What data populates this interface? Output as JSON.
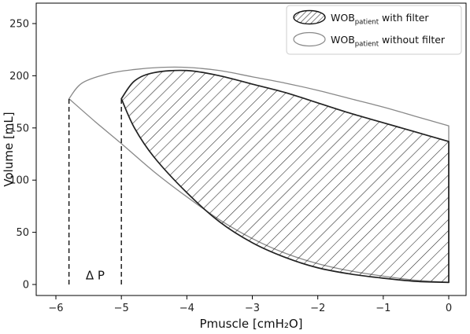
{
  "chart_data": {
    "type": "area",
    "xlabel": "Pmuscle [cmH₂O]",
    "ylabel": "Volume [mL]",
    "xlim": [
      -6.2,
      0.2
    ],
    "ylim": [
      -10,
      270
    ],
    "xticks": [
      -6,
      -5,
      -4,
      -3,
      -2,
      -1,
      0
    ],
    "xtick_labels": [
      "−6",
      "−5",
      "−4",
      "−3",
      "−2",
      "−1",
      "0"
    ],
    "yticks": [
      0,
      50,
      100,
      150,
      200,
      250
    ],
    "ytick_labels": [
      "0",
      "50",
      "100",
      "150",
      "200",
      "250"
    ],
    "grid": false,
    "legend_position": "top-right",
    "legend": [
      {
        "main": "WOB",
        "sub": "patient",
        "suffix": " with filter",
        "style": "hatched"
      },
      {
        "main": "WOB",
        "sub": "patient",
        "suffix": " without filter",
        "style": "outline"
      }
    ],
    "annotation": "Δ P",
    "series": [
      {
        "name": "WOB patient with filter",
        "style": "hatched",
        "color": "#222222",
        "inspiratory": {
          "x": [
            0,
            -0.5,
            -1,
            -1.5,
            -2,
            -2.5,
            -3,
            -3.5,
            -4,
            -4.5,
            -4.8,
            -5
          ],
          "y": [
            2,
            3,
            6,
            10,
            16,
            26,
            40,
            60,
            88,
            122,
            150,
            178
          ]
        },
        "expiratory": {
          "x": [
            -5,
            -4.8,
            -4.5,
            -4,
            -3.5,
            -3,
            -2.5,
            -2,
            -1.5,
            -1,
            -0.5,
            0
          ],
          "y": [
            178,
            195,
            203,
            205,
            200,
            192,
            184,
            174,
            164,
            155,
            146,
            137
          ]
        },
        "closing": {
          "x": [
            0,
            0
          ],
          "y": [
            137,
            2
          ]
        }
      },
      {
        "name": "WOB patient without filter",
        "style": "outline",
        "color": "#888888",
        "inspiratory": {
          "x": [
            0,
            -0.5,
            -1,
            -1.5,
            -2,
            -2.5,
            -3,
            -3.5,
            -4,
            -4.5,
            -5,
            -5.4,
            -5.8
          ],
          "y": [
            2,
            4,
            8,
            13,
            20,
            30,
            44,
            62,
            84,
            108,
            135,
            156,
            178
          ]
        },
        "expiratory": {
          "x": [
            -5.8,
            -5.6,
            -5.2,
            -4.8,
            -4.4,
            -4,
            -3.5,
            -3,
            -2.5,
            -2,
            -1.5,
            -1,
            -0.5,
            0
          ],
          "y": [
            178,
            193,
            202,
            206,
            208,
            208,
            205,
            199,
            193,
            186,
            178,
            170,
            161,
            152
          ]
        },
        "closing": {
          "x": [
            0,
            0
          ],
          "y": [
            152,
            2
          ]
        }
      }
    ],
    "dashed_lines": [
      {
        "x": -5.8,
        "y": [
          0,
          178
        ]
      },
      {
        "x": -5.0,
        "y": [
          0,
          178
        ]
      }
    ],
    "annotation_pos": {
      "x": -5.4,
      "y": 5
    }
  }
}
